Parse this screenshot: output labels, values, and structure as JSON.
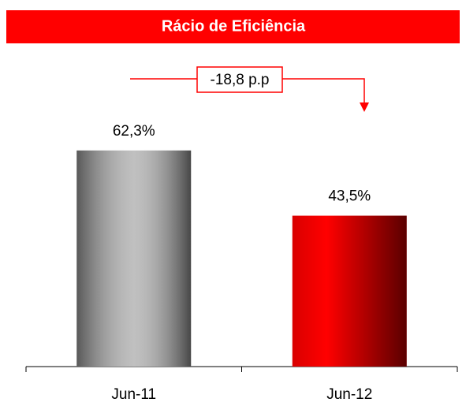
{
  "chart_data": {
    "type": "bar",
    "title": "Rácio de Eficiência",
    "categories": [
      "Jun-11",
      "Jun-12"
    ],
    "values": [
      62.3,
      43.5
    ],
    "value_labels": [
      "62,3%",
      "43,5%"
    ],
    "colors": [
      "#b0b0b0",
      "#ff0000"
    ],
    "annotation": "-18,8 p.p",
    "ylim": [
      0,
      70
    ]
  }
}
